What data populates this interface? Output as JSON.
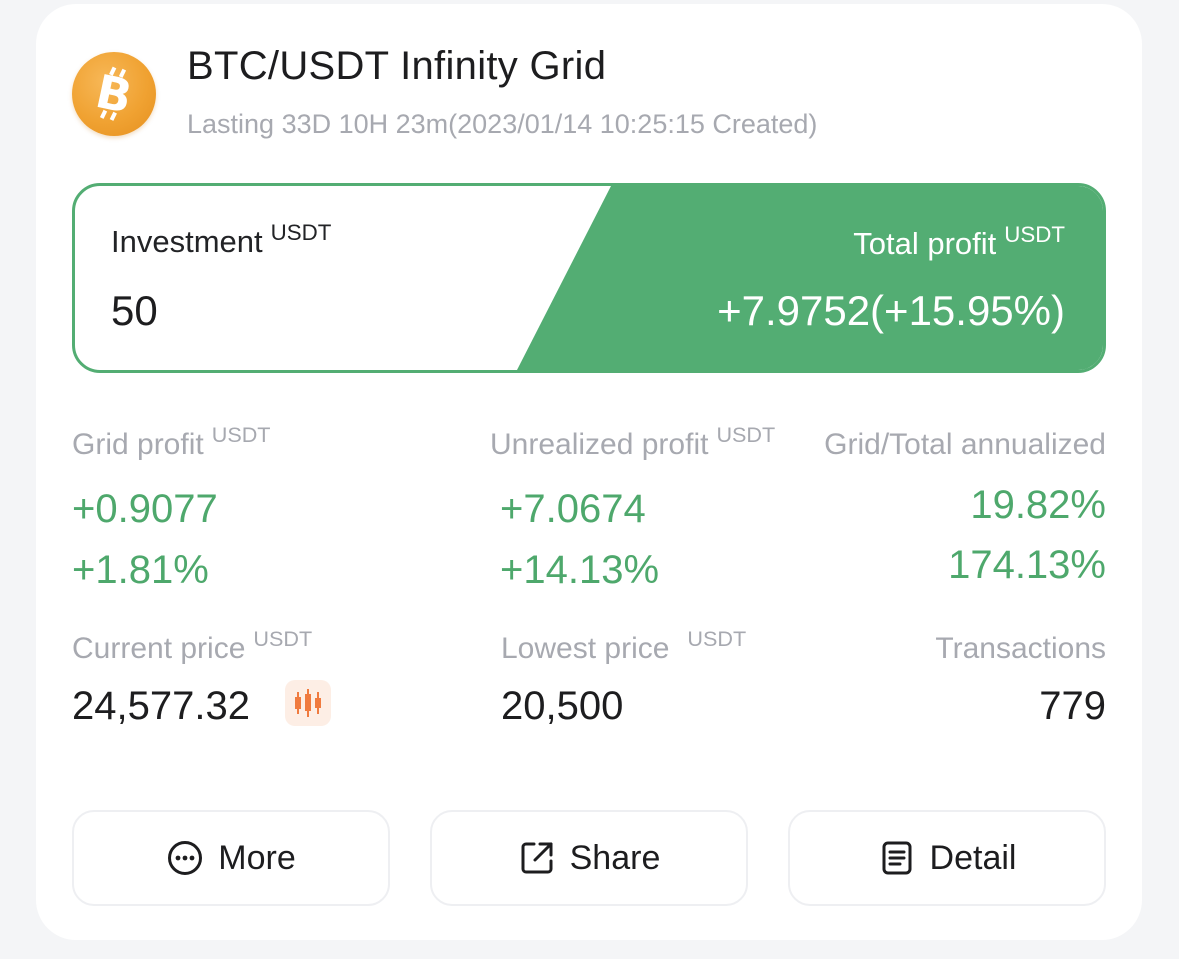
{
  "header": {
    "title": "BTC/USDT Infinity Grid",
    "subtitle": "Lasting 33D 10H 23m(2023/01/14 10:25:15 Created)",
    "coin_icon": "bitcoin-icon"
  },
  "summary": {
    "investment_label": "Investment",
    "investment_unit": "USDT",
    "investment_value": "50",
    "total_profit_label": "Total profit",
    "total_profit_unit": "USDT",
    "total_profit_value": "+7.9752(+15.95%)"
  },
  "stats": {
    "grid_profit": {
      "label": "Grid profit",
      "unit": "USDT",
      "value": "+0.9077",
      "percent": "+1.81%"
    },
    "unrealized_profit": {
      "label": "Unrealized profit",
      "unit": "USDT",
      "value": "+7.0674",
      "percent": "+14.13%"
    },
    "annualized": {
      "label": "Grid/Total annualized",
      "grid": "19.82%",
      "total": "174.13%"
    },
    "current_price": {
      "label": "Current price",
      "unit": "USDT",
      "value": "24,577.32",
      "icon": "candlestick-chart-icon"
    },
    "lowest_price": {
      "label": "Lowest price",
      "unit": "USDT",
      "value": "20,500"
    },
    "transactions": {
      "label": "Transactions",
      "value": "779"
    }
  },
  "actions": {
    "more_label": "More",
    "share_label": "Share",
    "detail_label": "Detail"
  },
  "colors": {
    "accent_green": "#53ad73",
    "profit_green": "#4ea86c",
    "bitcoin_orange": "#f0a232",
    "muted_text": "#a7a9b0"
  }
}
